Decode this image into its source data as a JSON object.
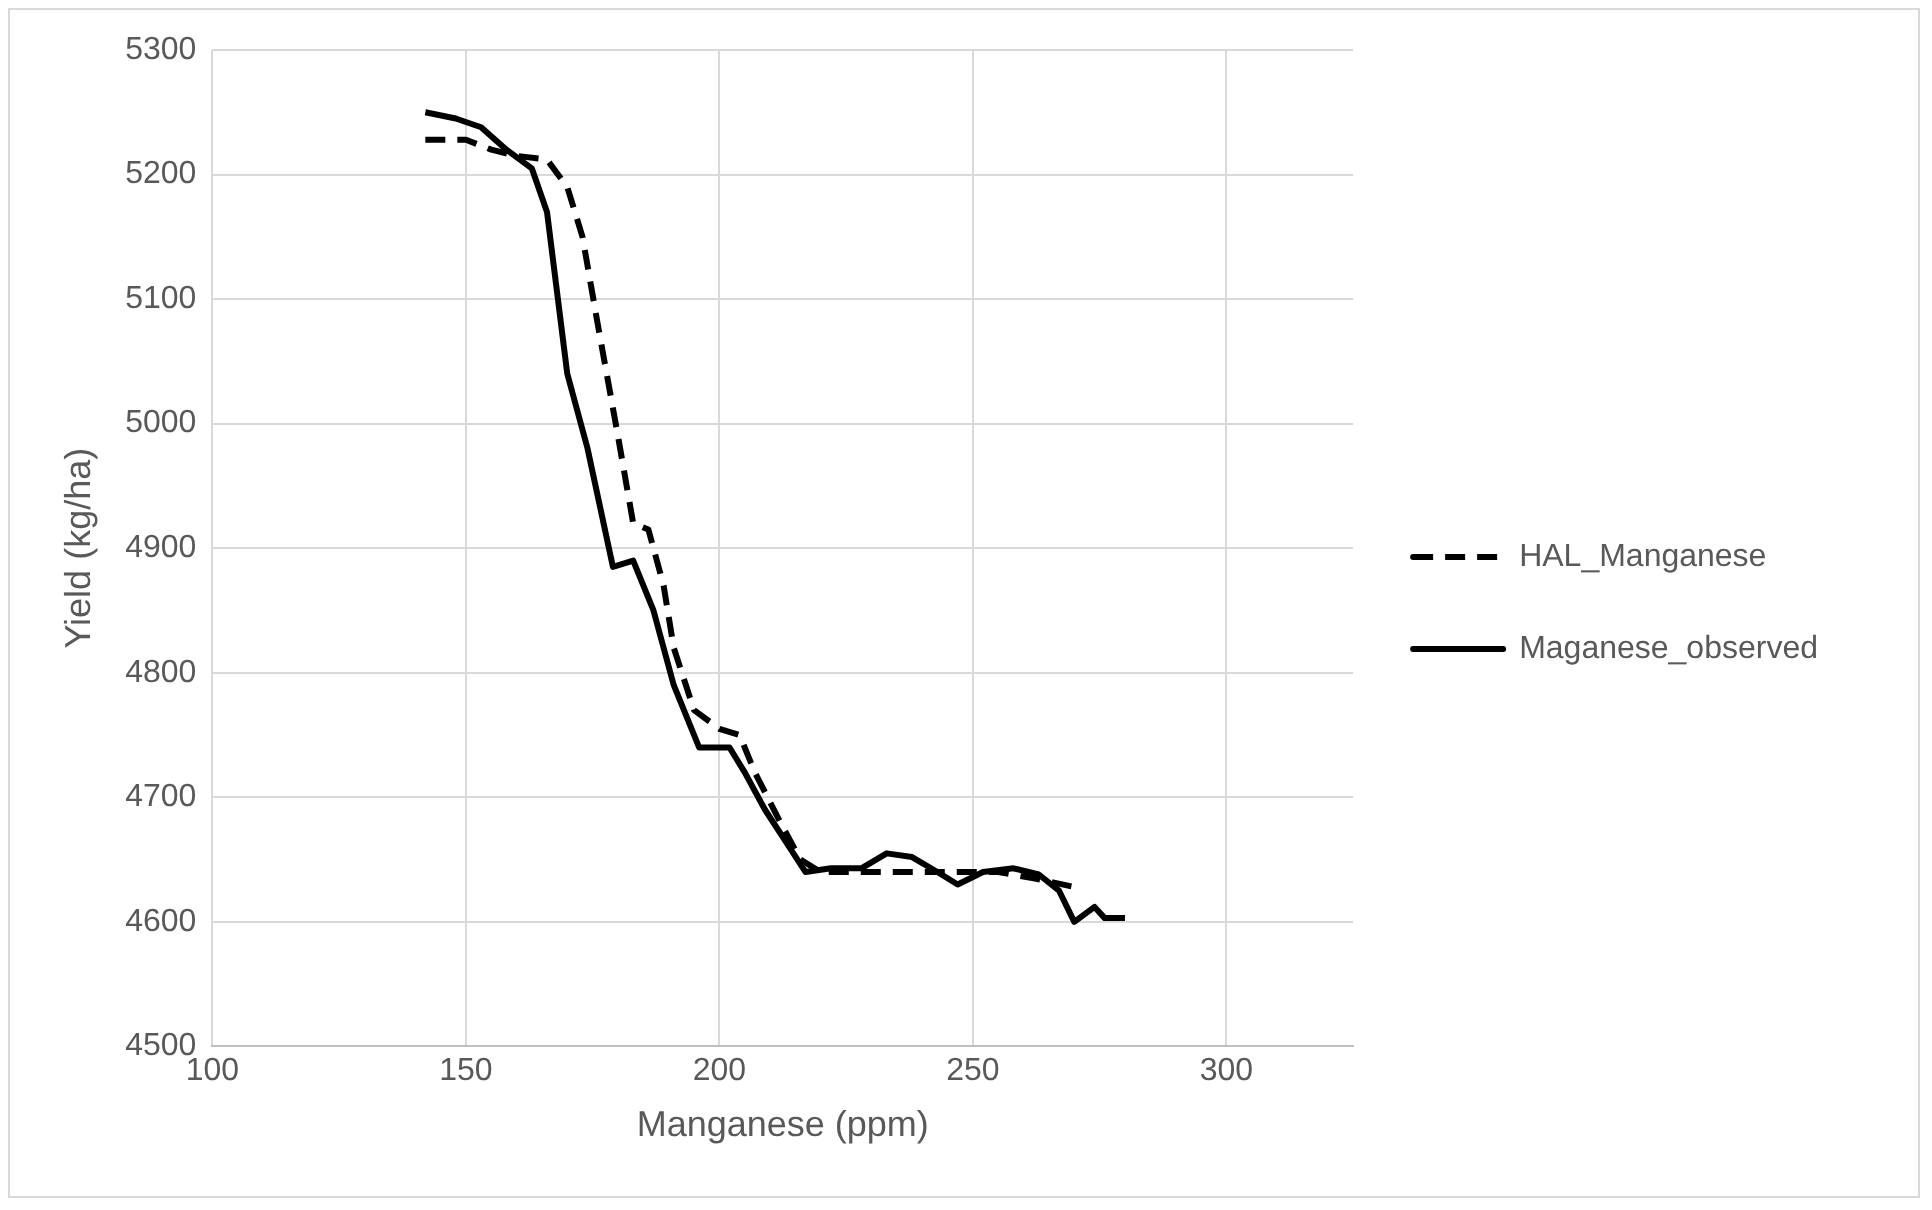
{
  "chart_data": {
    "type": "line",
    "xlabel": "Manganese (ppm)",
    "ylabel": "Yield (kg/ha)",
    "xlim": [
      100,
      325
    ],
    "xticks": [
      100,
      150,
      200,
      250,
      300
    ],
    "ylim": [
      4500,
      5300
    ],
    "yticks": [
      4500,
      4600,
      4700,
      4800,
      4900,
      5000,
      5100,
      5200,
      5300
    ],
    "grid": true,
    "legend": "right",
    "marker": "none",
    "series": [
      {
        "name": "HAL_Manganese",
        "color": "#000000",
        "line_style": "dashed",
        "x": [
          142,
          150,
          155,
          160,
          166,
          170,
          173,
          176,
          180,
          183,
          186,
          189,
          191,
          195,
          200,
          204,
          207,
          212,
          216,
          220,
          230,
          245,
          255,
          262,
          270
        ],
        "values": [
          5228,
          5228,
          5220,
          5215,
          5212,
          5190,
          5150,
          5080,
          4990,
          4920,
          4915,
          4870,
          4820,
          4770,
          4755,
          4750,
          4720,
          4680,
          4650,
          4640,
          4640,
          4640,
          4640,
          4635,
          4628
        ]
      },
      {
        "name": "Maganese_observed",
        "color": "#000000",
        "line_style": "solid",
        "x": [
          142,
          148,
          153,
          158,
          163,
          166,
          170,
          174,
          179,
          183,
          187,
          191,
          196,
          202,
          205,
          209,
          213,
          217,
          222,
          228,
          233,
          238,
          243,
          247,
          252,
          258,
          263,
          267,
          270,
          274,
          276,
          280
        ],
        "values": [
          5250,
          5245,
          5238,
          5220,
          5205,
          5170,
          5040,
          4980,
          4885,
          4890,
          4850,
          4790,
          4740,
          4740,
          4720,
          4690,
          4665,
          4640,
          4643,
          4643,
          4655,
          4652,
          4640,
          4630,
          4640,
          4643,
          4638,
          4625,
          4600,
          4612,
          4603,
          4603
        ]
      }
    ]
  }
}
